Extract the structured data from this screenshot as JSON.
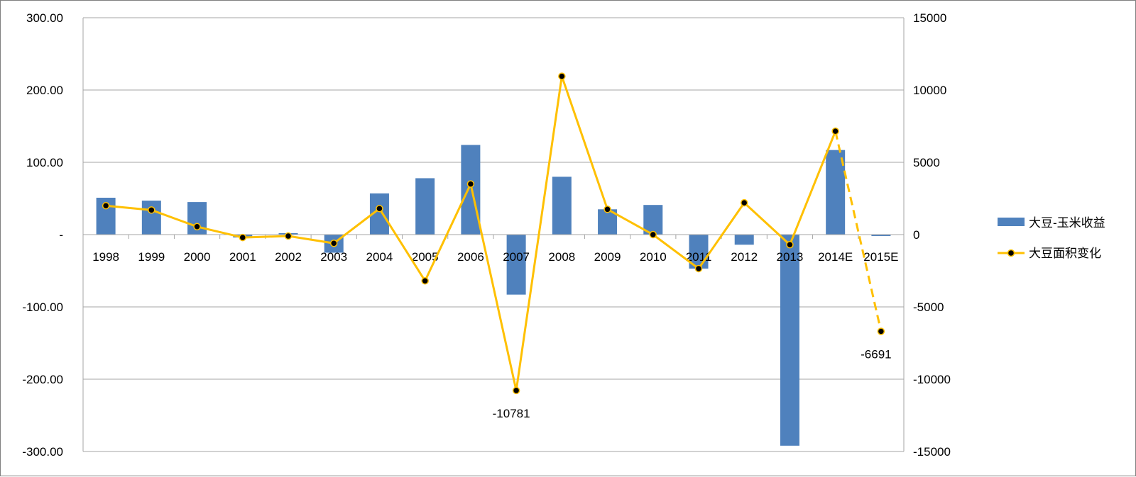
{
  "chart_data": {
    "type": "bar+line",
    "categories": [
      "1998",
      "1999",
      "2000",
      "2001",
      "2002",
      "2003",
      "2004",
      "2005",
      "2006",
      "2007",
      "2008",
      "2009",
      "2010",
      "2011",
      "2012",
      "2013",
      "2014E",
      "2015E"
    ],
    "series": [
      {
        "name": "大豆-玉米收益",
        "type": "bar",
        "axis": "left",
        "color": "#4f81bd",
        "values": [
          51,
          47,
          45,
          -4,
          2,
          -25,
          57,
          78,
          124,
          -83,
          80,
          35,
          41,
          -47,
          -14,
          -292,
          117,
          -2
        ]
      },
      {
        "name": "大豆面积变化",
        "type": "line",
        "axis": "right",
        "color": "#ffc000",
        "marker_color": "#000000",
        "values": [
          2000,
          1700,
          550,
          -200,
          -100,
          -600,
          1800,
          -3200,
          3500,
          -10781,
          10950,
          1750,
          0,
          -2350,
          2200,
          -700,
          7150,
          -6691
        ],
        "dashed_last_segment": true
      }
    ],
    "data_labels": [
      {
        "series": "大豆面积变化",
        "category": "2007",
        "text": "-10781"
      },
      {
        "series": "大豆面积变化",
        "category": "2015E",
        "text": "-6691"
      }
    ],
    "left_axis": {
      "ylim": [
        -300,
        300
      ],
      "ticks": [
        300,
        200,
        100,
        0,
        -100,
        -200,
        -300
      ],
      "tick_labels": [
        "300.00",
        "200.00",
        "100.00",
        "-",
        "-100.00",
        "-200.00",
        "-300.00"
      ]
    },
    "right_axis": {
      "ylim": [
        -15000,
        15000
      ],
      "ticks": [
        15000,
        10000,
        5000,
        0,
        -5000,
        -10000,
        -15000
      ],
      "tick_labels": [
        "15000",
        "10000",
        "5000",
        "0",
        "-5000",
        "-10000",
        "-15000"
      ]
    },
    "grid": true,
    "legend": "right",
    "title": "",
    "xlabel": "",
    "ylabel": ""
  }
}
